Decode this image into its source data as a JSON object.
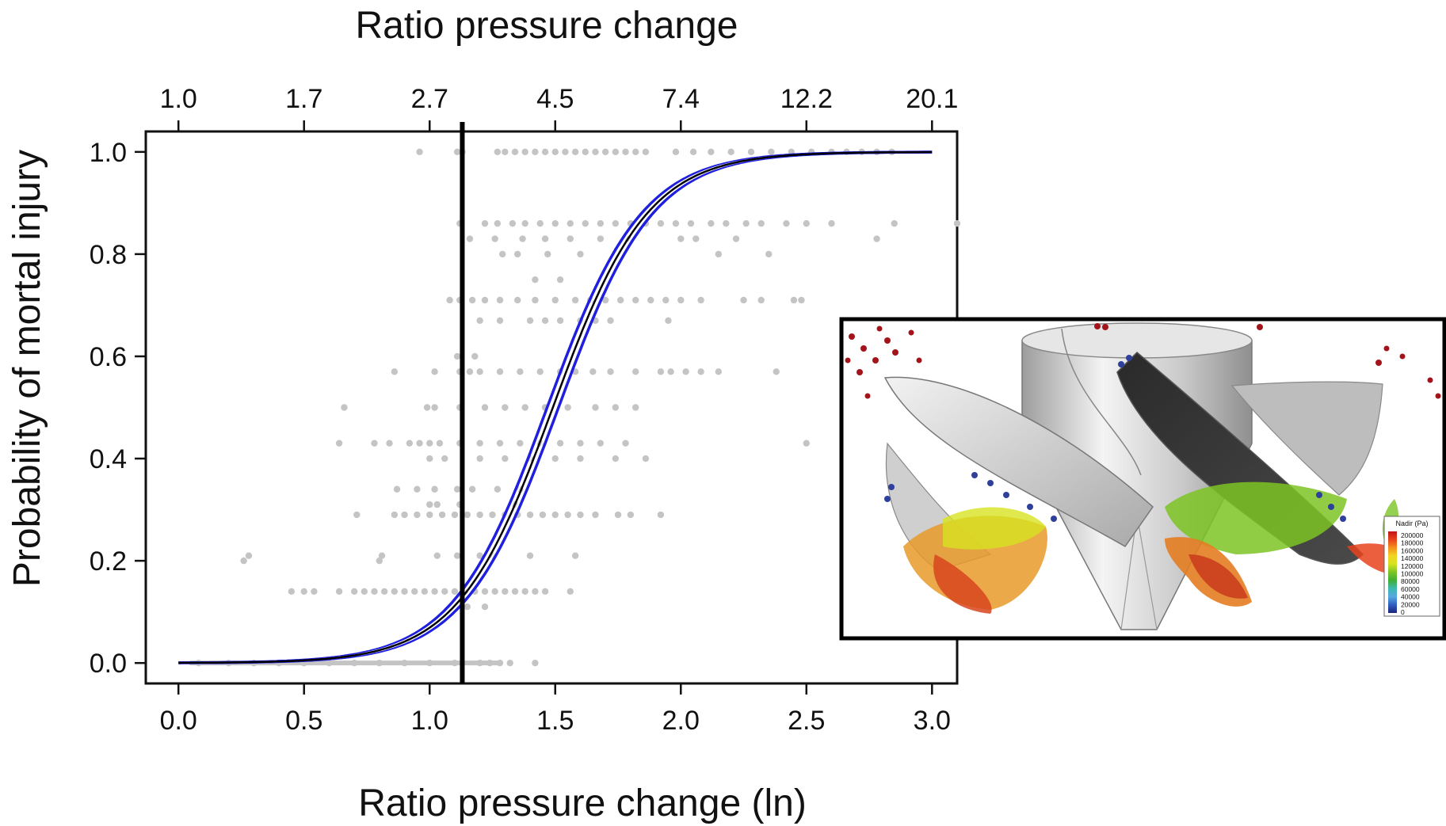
{
  "chart_data": {
    "type": "scatter",
    "title": "",
    "xlabel": "Ratio pressure change (ln)",
    "x2label": "Ratio pressure change",
    "ylabel": "Probability of mortal injury",
    "xlim": [
      -0.13,
      3.1
    ],
    "ylim": [
      -0.04,
      1.04
    ],
    "x_ticks": [
      0.0,
      0.5,
      1.0,
      1.5,
      2.0,
      2.5,
      3.0
    ],
    "x_tick_labels": [
      "0.0",
      "0.5",
      "1.0",
      "1.5",
      "2.0",
      "2.5",
      "3.0"
    ],
    "x2_tick_positions": [
      0.0,
      0.5,
      1.0,
      1.5,
      2.0,
      2.5,
      3.0
    ],
    "x2_tick_labels": [
      "1.0",
      "1.7",
      "2.7",
      "4.5",
      "7.4",
      "12.2",
      "20.1"
    ],
    "y_ticks": [
      0.0,
      0.2,
      0.4,
      0.6,
      0.8,
      1.0
    ],
    "y_tick_labels": [
      "0.0",
      "0.2",
      "0.4",
      "0.6",
      "0.8",
      "1.0"
    ],
    "threshold_x": 1.13,
    "logistic_fit": {
      "intercept": -7.9,
      "slope": 5.3
    },
    "series": [
      {
        "type": "points",
        "color": "#c4c4c4",
        "rows": [
          {
            "y": 1.0,
            "x": [
              0.96,
              1.11,
              1.13,
              1.27,
              1.3,
              1.34,
              1.38,
              1.42,
              1.46,
              1.5,
              1.54,
              1.58,
              1.62,
              1.66,
              1.7,
              1.74,
              1.78,
              1.82,
              1.86,
              1.98,
              2.05,
              2.12,
              2.2,
              2.28,
              2.36,
              2.44,
              2.52,
              2.6,
              2.66,
              2.72,
              2.78,
              2.84
            ]
          },
          {
            "y": 0.86,
            "x": [
              1.12,
              1.22,
              1.27,
              1.33,
              1.38,
              1.44,
              1.5,
              1.56,
              1.62,
              1.68,
              1.74,
              1.8,
              1.86,
              1.92,
              1.98,
              2.04,
              2.12,
              2.18,
              2.26,
              2.32,
              2.42,
              2.5,
              2.6,
              2.85,
              3.1
            ]
          },
          {
            "y": 0.83,
            "x": [
              1.16,
              1.26,
              1.37,
              1.46,
              1.56,
              1.68,
              1.79,
              2.0,
              2.06,
              2.22,
              2.78
            ]
          },
          {
            "y": 0.8,
            "x": [
              1.29,
              1.35,
              1.47,
              1.6,
              2.15,
              2.35
            ]
          },
          {
            "y": 0.75,
            "x": [
              1.42,
              1.52
            ]
          },
          {
            "y": 0.71,
            "x": [
              1.08,
              1.12,
              1.17,
              1.22,
              1.28,
              1.35,
              1.42,
              1.5,
              1.58,
              1.64,
              1.7,
              1.76,
              1.82,
              1.88,
              1.94,
              2.0,
              2.08,
              2.25,
              2.32,
              2.45,
              2.48
            ]
          },
          {
            "y": 0.67,
            "x": [
              1.2,
              1.28,
              1.4,
              1.46,
              1.52,
              1.6,
              1.66,
              1.72,
              1.95,
              2.69
            ]
          },
          {
            "y": 0.6,
            "x": [
              1.11,
              1.18
            ]
          },
          {
            "y": 0.57,
            "x": [
              0.86,
              1.02,
              1.12,
              1.16,
              1.2,
              1.28,
              1.36,
              1.44,
              1.52,
              1.58,
              1.65,
              1.72,
              1.82,
              1.92,
              1.96,
              2.02,
              2.08,
              2.15,
              2.38
            ]
          },
          {
            "y": 0.5,
            "x": [
              0.66,
              0.99,
              1.02,
              1.12,
              1.22,
              1.3,
              1.38,
              1.46,
              1.55,
              1.66,
              1.74,
              1.82
            ]
          },
          {
            "y": 0.43,
            "x": [
              0.64,
              0.78,
              0.84,
              0.92,
              0.96,
              1.0,
              1.04,
              1.12,
              1.2,
              1.28,
              1.36,
              1.44,
              1.52,
              1.6,
              1.68,
              1.78,
              2.5
            ]
          },
          {
            "y": 0.4,
            "x": [
              1.0,
              1.06,
              1.2,
              1.3,
              1.4,
              1.5,
              1.6,
              1.74,
              1.86
            ]
          },
          {
            "y": 0.34,
            "x": [
              0.87,
              0.95,
              1.02,
              1.11,
              1.17,
              1.27,
              1.36
            ]
          },
          {
            "y": 0.31,
            "x": [
              1.0,
              1.03,
              1.12,
              1.34
            ]
          },
          {
            "y": 0.29,
            "x": [
              0.71,
              0.86,
              0.9,
              0.95,
              1.0,
              1.05,
              1.1,
              1.15,
              1.2,
              1.25,
              1.3,
              1.35,
              1.4,
              1.45,
              1.5,
              1.55,
              1.6,
              1.66,
              1.75,
              1.8,
              1.92
            ]
          },
          {
            "y": 0.21,
            "x": [
              0.28,
              0.81,
              1.03,
              1.11,
              1.2,
              1.25,
              1.4,
              1.58
            ]
          },
          {
            "y": 0.2,
            "x": [
              0.26,
              0.8
            ]
          },
          {
            "y": 0.14,
            "x": [
              0.45,
              0.5,
              0.54,
              0.64,
              0.7,
              0.74,
              0.78,
              0.82,
              0.86,
              0.9,
              0.94,
              0.98,
              1.02,
              1.06,
              1.1,
              1.14,
              1.18,
              1.22,
              1.26,
              1.3,
              1.34,
              1.38,
              1.42,
              1.46,
              1.56
            ]
          },
          {
            "y": 0.11,
            "x": [
              1.15,
              1.22
            ]
          },
          {
            "y": 0.0,
            "x": [
              0.08,
              0.2,
              0.3,
              0.4,
              0.5,
              0.6,
              0.7,
              0.8,
              0.9,
              1.0,
              1.1,
              1.2,
              1.24,
              1.28,
              1.32,
              1.42
            ]
          }
        ]
      },
      {
        "type": "fitted_curve",
        "color": "#000000"
      },
      {
        "type": "confidence_band",
        "color": "#1f1fe0"
      }
    ],
    "grid": false,
    "legend": "none"
  },
  "inset": {
    "legend_title": "Nadir (Pa)",
    "legend_labels": [
      "200000",
      "180000",
      "160000",
      "140000",
      "120000",
      "100000",
      "80000",
      "60000",
      "40000",
      "20000",
      "0"
    ],
    "legend_colors": [
      "#c0141a",
      "#e8421c",
      "#f4901e",
      "#f2d522",
      "#d7e21f",
      "#7cc425",
      "#3fae36",
      "#3dbab0",
      "#56a8e2",
      "#2f5fc0",
      "#1c237a"
    ]
  }
}
